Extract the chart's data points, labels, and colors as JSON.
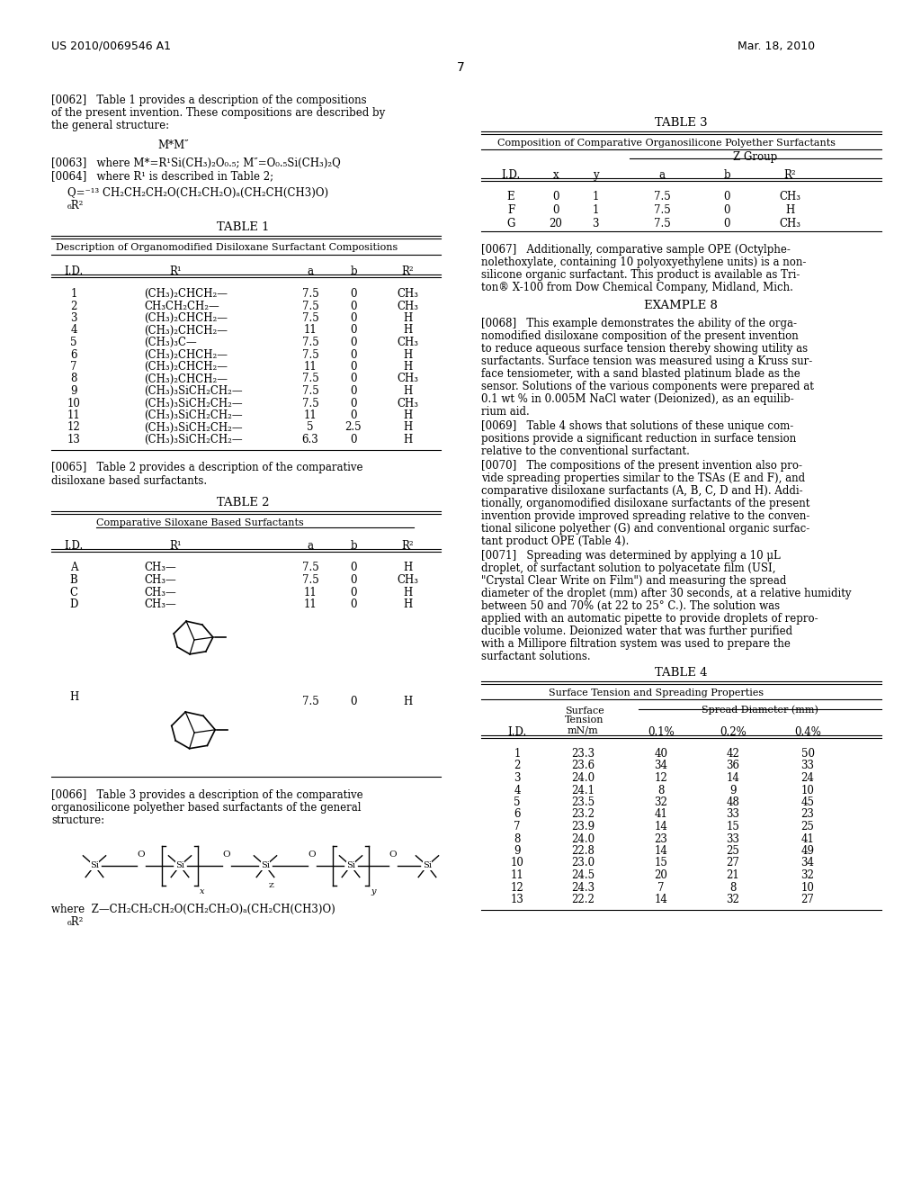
{
  "patent_number": "US 2010/0069546 A1",
  "patent_date": "Mar. 18, 2010",
  "page_number": "7",
  "table1_data": [
    [
      "1",
      "(CH₃)₂CHCH₂—",
      "7.5",
      "0",
      "CH₃"
    ],
    [
      "2",
      "CH₃CH₂CH₂—",
      "7.5",
      "0",
      "CH₃"
    ],
    [
      "3",
      "(CH₃)₂CHCH₂—",
      "7.5",
      "0",
      "H"
    ],
    [
      "4",
      "(CH₃)₂CHCH₂—",
      "11",
      "0",
      "H"
    ],
    [
      "5",
      "(CH₃)₃C—",
      "7.5",
      "0",
      "CH₃"
    ],
    [
      "6",
      "(CH₃)₂CHCH₂—",
      "7.5",
      "0",
      "H"
    ],
    [
      "7",
      "(CH₃)₂CHCH₂—",
      "11",
      "0",
      "H"
    ],
    [
      "8",
      "(CH₃)₂CHCH₂—",
      "7.5",
      "0",
      "CH₃"
    ],
    [
      "9",
      "(CH₃)₃SiCH₂CH₂—",
      "7.5",
      "0",
      "H"
    ],
    [
      "10",
      "(CH₃)₃SiCH₂CH₂—",
      "7.5",
      "0",
      "CH₃"
    ],
    [
      "11",
      "(CH₃)₃SiCH₂CH₂—",
      "11",
      "0",
      "H"
    ],
    [
      "12",
      "(CH₃)₃SiCH₂CH₂—",
      "5",
      "2.5",
      "H"
    ],
    [
      "13",
      "(CH₃)₃SiCH₂CH₂—",
      "6.3",
      "0",
      "H"
    ]
  ],
  "table2_data": [
    [
      "A",
      "CH₃—",
      "7.5",
      "0",
      "H"
    ],
    [
      "B",
      "CH₃—",
      "7.5",
      "0",
      "CH₃"
    ],
    [
      "C",
      "CH₃—",
      "11",
      "0",
      "H"
    ],
    [
      "D",
      "CH₃—",
      "11",
      "0",
      "H"
    ]
  ],
  "table3_data": [
    [
      "E",
      "0",
      "1",
      "7.5",
      "0",
      "CH₃"
    ],
    [
      "F",
      "0",
      "1",
      "7.5",
      "0",
      "H"
    ],
    [
      "G",
      "20",
      "3",
      "7.5",
      "0",
      "CH₃"
    ]
  ],
  "table4_data": [
    [
      "1",
      "23.3",
      "40",
      "42",
      "50"
    ],
    [
      "2",
      "23.6",
      "34",
      "36",
      "33"
    ],
    [
      "3",
      "24.0",
      "12",
      "14",
      "24"
    ],
    [
      "4",
      "24.1",
      "8",
      "9",
      "10"
    ],
    [
      "5",
      "23.5",
      "32",
      "48",
      "45"
    ],
    [
      "6",
      "23.2",
      "41",
      "33",
      "23"
    ],
    [
      "7",
      "23.9",
      "14",
      "15",
      "25"
    ],
    [
      "8",
      "24.0",
      "23",
      "33",
      "41"
    ],
    [
      "9",
      "22.8",
      "14",
      "25",
      "49"
    ],
    [
      "10",
      "23.0",
      "15",
      "27",
      "34"
    ],
    [
      "11",
      "24.5",
      "20",
      "21",
      "32"
    ],
    [
      "12",
      "24.3",
      "7",
      "8",
      "10"
    ],
    [
      "13",
      "22.2",
      "14",
      "32",
      "27"
    ]
  ]
}
